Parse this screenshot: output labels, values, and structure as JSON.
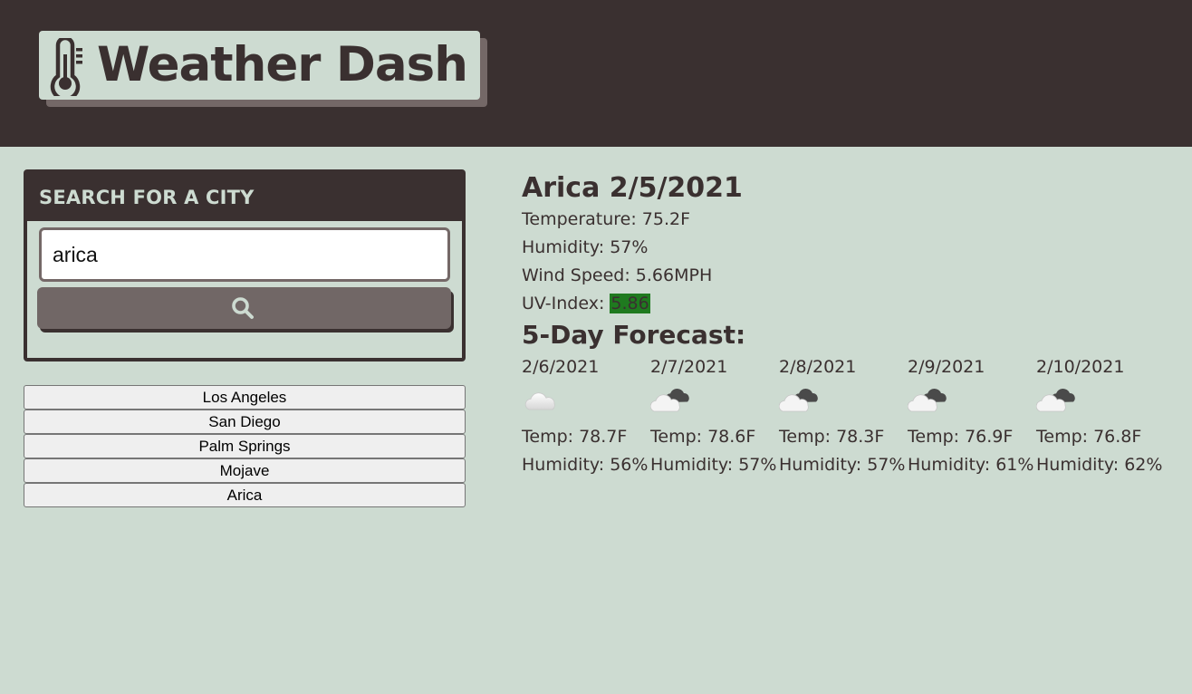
{
  "header": {
    "title": "Weather Dash",
    "icon": "thermometer-icon",
    "background": "#3a3030"
  },
  "search": {
    "title": "SEARCH FOR A CITY",
    "value": "arica",
    "button_icon": "search-icon"
  },
  "history": [
    "Los Angeles",
    "San Diego",
    "Palm Springs",
    "Mojave",
    "Arica"
  ],
  "current": {
    "title": "Arica 2/5/2021",
    "temperature": "Temperature: 75.2F",
    "humidity": "Humidity: 57%",
    "wind": "Wind Speed: 5.66MPH",
    "uv_label": "UV-Index: ",
    "uv_value": "5.86",
    "uv_color": "#1f7a1f"
  },
  "forecast": {
    "title": "5-Day Forecast:",
    "days": [
      {
        "date": "2/6/2021",
        "icon": "cloud-icon",
        "temp": "Temp: 78.7F",
        "humidity": "Humidity: 56%"
      },
      {
        "date": "2/7/2021",
        "icon": "overcast-clouds-icon",
        "temp": "Temp: 78.6F",
        "humidity": "Humidity: 57%"
      },
      {
        "date": "2/8/2021",
        "icon": "overcast-clouds-icon",
        "temp": "Temp: 78.3F",
        "humidity": "Humidity: 57%"
      },
      {
        "date": "2/9/2021",
        "icon": "overcast-clouds-icon",
        "temp": "Temp: 76.9F",
        "humidity": "Humidity: 61%"
      },
      {
        "date": "2/10/2021",
        "icon": "overcast-clouds-icon",
        "temp": "Temp: 76.8F",
        "humidity": "Humidity: 62%"
      }
    ]
  },
  "colors": {
    "background": "#cddbd1",
    "dark": "#3a3030",
    "button": "#716766"
  }
}
